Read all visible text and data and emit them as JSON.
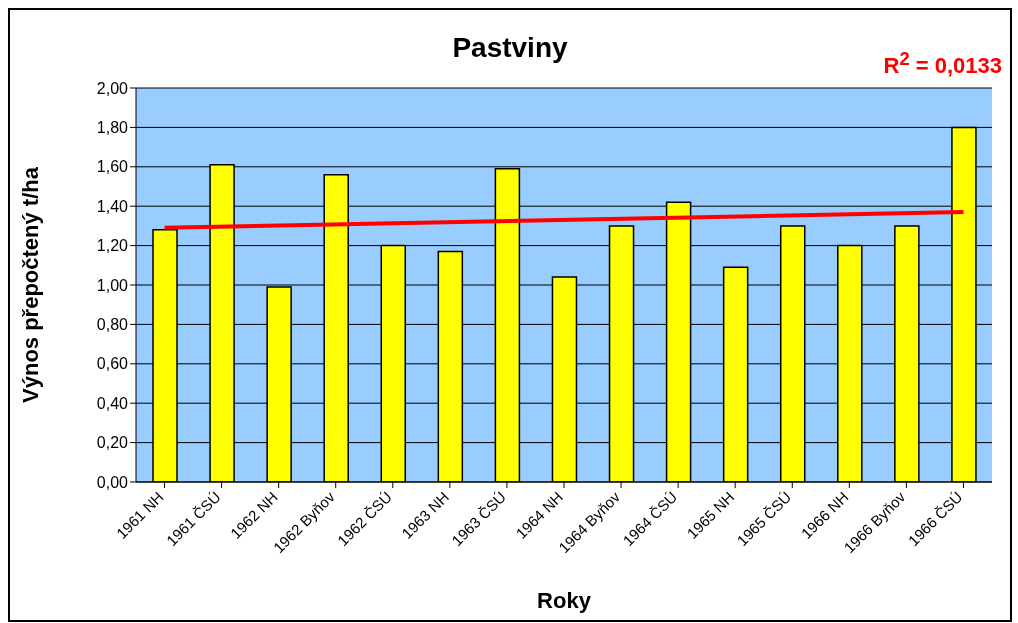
{
  "chart_data": {
    "type": "bar",
    "title": "Pastviny",
    "xlabel": "Roky",
    "ylabel": "Výnos přepočtený t/ha",
    "categories": [
      "1961 NH",
      "1961 ČSÚ",
      "1962 NH",
      "1962 Byňov",
      "1962 ČSÚ",
      "1963 NH",
      "1963 ČSÚ",
      "1964 NH",
      "1964 Byňov",
      "1964 ČSÚ",
      "1965 NH",
      "1965 ČSÚ",
      "1966 NH",
      "1966 Byňov",
      "1966 ČSÚ"
    ],
    "series": [
      {
        "color": "#ffff00",
        "values": [
          1.28,
          1.61,
          0.99,
          1.56,
          1.2,
          1.17,
          1.59,
          1.04,
          1.3,
          1.42,
          1.09,
          1.3,
          1.2,
          1.3,
          1.8
        ]
      },
      {
        "type": "line",
        "color": "#ff0000",
        "marker": "none",
        "x": [
          "1961 NH",
          "1966 ČSÚ"
        ],
        "values": [
          1.29,
          1.37
        ]
      }
    ],
    "ylim": [
      0,
      2
    ],
    "yticks": [
      {
        "value": 0,
        "label": "0,00"
      },
      {
        "value": 0.2,
        "label": "0,20"
      },
      {
        "value": 0.4,
        "label": "0,40"
      },
      {
        "value": 0.6,
        "label": "0,60"
      },
      {
        "value": 0.8,
        "label": "0,80"
      },
      {
        "value": 1,
        "label": "1,00"
      },
      {
        "value": 1.2,
        "label": "1,20"
      },
      {
        "value": 1.4,
        "label": "1,40"
      },
      {
        "value": 1.6,
        "label": "1,60"
      },
      {
        "value": 1.8,
        "label": "1,80"
      },
      {
        "value": 2,
        "label": "2,00"
      }
    ],
    "grid": "y",
    "legend": false,
    "annotations": [
      "R$^{2}$ = 0,0133"
    ]
  }
}
